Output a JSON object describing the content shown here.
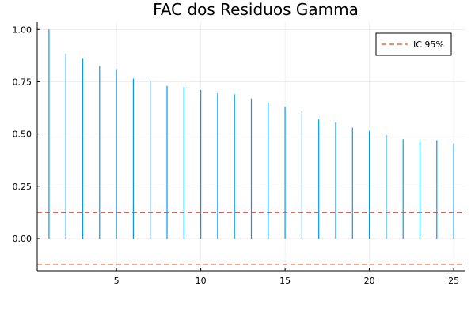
{
  "chart_data": {
    "type": "bar",
    "title": "FAC dos Residuos Gamma",
    "xlabel": "",
    "ylabel": "",
    "xlim": [
      0.3,
      25.7
    ],
    "ylim": [
      -0.155,
      1.035
    ],
    "xticks": [
      5,
      10,
      15,
      20,
      25
    ],
    "yticks": [
      0.0,
      0.25,
      0.5,
      0.75,
      1.0
    ],
    "ytick_labels": [
      "0.00",
      "0.25",
      "0.50",
      "0.75",
      "1.00"
    ],
    "grid": true,
    "legend_position": "top-right",
    "lags": [
      1,
      2,
      3,
      4,
      5,
      6,
      7,
      8,
      9,
      10,
      11,
      12,
      13,
      14,
      15,
      16,
      17,
      18,
      19,
      20,
      21,
      22,
      23,
      24,
      25
    ],
    "series": [
      {
        "values": [
          1.0,
          0.885,
          0.86,
          0.825,
          0.81,
          0.765,
          0.755,
          0.73,
          0.725,
          0.71,
          0.695,
          0.69,
          0.67,
          0.65,
          0.63,
          0.61,
          0.57,
          0.555,
          0.53,
          0.515,
          0.495,
          0.475,
          0.47,
          0.47,
          0.455
        ],
        "color": "#009af9"
      }
    ],
    "confidence": {
      "name": "IC 95%",
      "upper": 0.125,
      "lower": -0.125,
      "color": "#e26f46"
    }
  }
}
